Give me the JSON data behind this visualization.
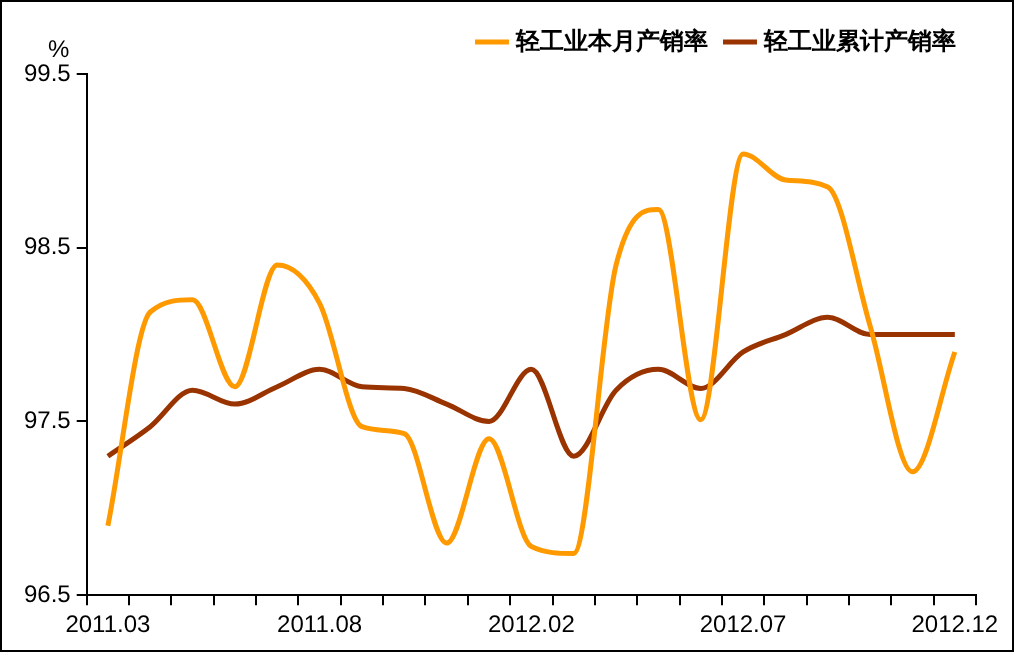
{
  "chart_data": {
    "type": "line",
    "ylabel": "%",
    "categories": [
      "2011.03",
      null,
      null,
      null,
      null,
      "2011.08",
      null,
      null,
      null,
      null,
      "2012.02",
      null,
      null,
      null,
      null,
      "2012.07",
      null,
      null,
      null,
      null,
      "2012.12"
    ],
    "series": [
      {
        "name": "轻工业本月产销率",
        "color": "#ff9900",
        "values": [
          96.9,
          98.13,
          98.2,
          97.7,
          98.4,
          98.18,
          97.47,
          97.43,
          96.8,
          97.4,
          96.78,
          96.74,
          98.4,
          98.72,
          97.51,
          99.04,
          98.89,
          98.85,
          98.05,
          97.21,
          97.9
        ]
      },
      {
        "name": "轻工业累计产销率",
        "color": "#993300",
        "values": [
          97.3,
          97.47,
          97.68,
          97.6,
          97.7,
          97.8,
          97.7,
          97.69,
          97.6,
          97.5,
          97.8,
          97.3,
          97.68,
          97.8,
          97.69,
          97.9,
          98.0,
          98.1,
          98.0,
          98.0,
          98.0
        ]
      }
    ],
    "ylim": [
      96.5,
      99.5
    ],
    "yticks": [
      96.5,
      97.5,
      98.5,
      99.5
    ],
    "grid": false,
    "legend": "top right",
    "marker": "none",
    "line_style": "solid"
  }
}
